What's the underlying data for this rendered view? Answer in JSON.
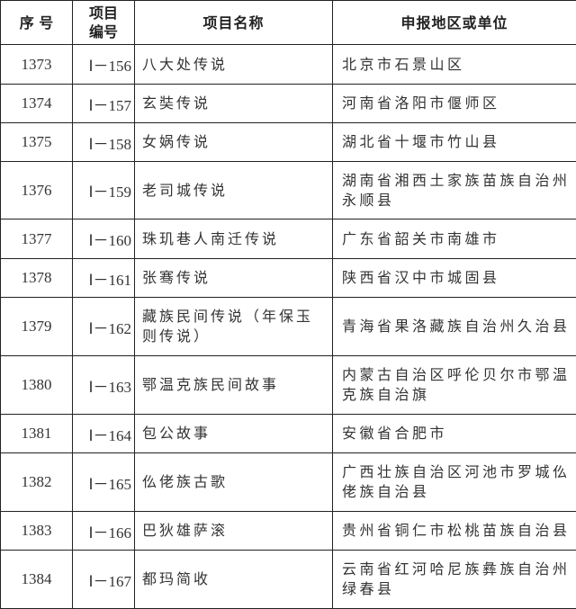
{
  "headers": {
    "index": "序 号",
    "code": "项目编号",
    "name": "项目名称",
    "region": "申报地区或单位"
  },
  "rows": [
    {
      "index": "1373",
      "code": "Ⅰ－156",
      "name": "八大处传说",
      "region": "北京市石景山区"
    },
    {
      "index": "1374",
      "code": "Ⅰ－157",
      "name": "玄奘传说",
      "region": "河南省洛阳市偃师区"
    },
    {
      "index": "1375",
      "code": "Ⅰ－158",
      "name": "女娲传说",
      "region": "湖北省十堰市竹山县"
    },
    {
      "index": "1376",
      "code": "Ⅰ－159",
      "name": "老司城传说",
      "region": "湖南省湘西土家族苗族自治州永顺县"
    },
    {
      "index": "1377",
      "code": "Ⅰ－160",
      "name": "珠玑巷人南迁传说",
      "region": "广东省韶关市南雄市"
    },
    {
      "index": "1378",
      "code": "Ⅰ－161",
      "name": "张骞传说",
      "region": "陕西省汉中市城固县"
    },
    {
      "index": "1379",
      "code": "Ⅰ－162",
      "name": "藏族民间传说（年保玉则传说）",
      "region": "青海省果洛藏族自治州久治县"
    },
    {
      "index": "1380",
      "code": "Ⅰ－163",
      "name": "鄂温克族民间故事",
      "region": "内蒙古自治区呼伦贝尔市鄂温克族自治旗"
    },
    {
      "index": "1381",
      "code": "Ⅰ－164",
      "name": "包公故事",
      "region": "安徽省合肥市"
    },
    {
      "index": "1382",
      "code": "Ⅰ－165",
      "name": "仫佬族古歌",
      "region": "广西壮族自治区河池市罗城仫佬族自治县"
    },
    {
      "index": "1383",
      "code": "Ⅰ－166",
      "name": "巴狄雄萨滚",
      "region": "贵州省铜仁市松桃苗族自治县"
    },
    {
      "index": "1384",
      "code": "Ⅰ－167",
      "name": "都玛简收",
      "region": "云南省红河哈尼族彝族自治州绿春县"
    }
  ]
}
